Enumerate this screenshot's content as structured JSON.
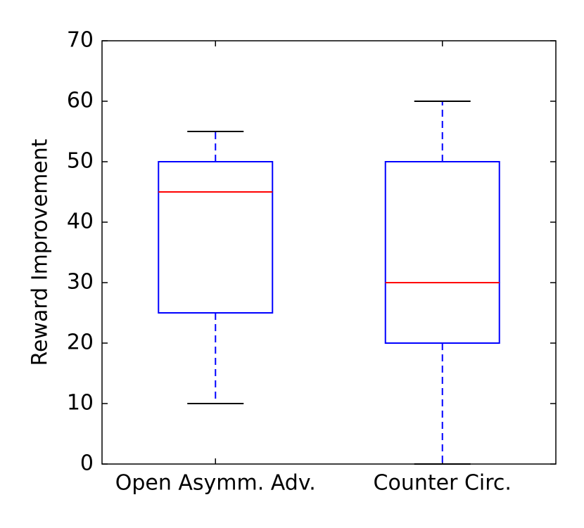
{
  "chart_data": {
    "type": "box",
    "ylabel": "Reward Improvement",
    "categories": [
      "Open Asymm. Adv.",
      "Counter Circ."
    ],
    "boxes": [
      {
        "whislo": 10,
        "q1": 25,
        "med": 45,
        "q3": 50,
        "whishi": 55
      },
      {
        "whislo": 0,
        "q1": 20,
        "med": 30,
        "q3": 50,
        "whishi": 60
      }
    ],
    "box_color": "#0000ff",
    "median_color": "#ff0000",
    "cap_color": "#000000",
    "ylim": [
      0,
      70
    ],
    "yticks": [
      0,
      10,
      20,
      30,
      40,
      50,
      60,
      70
    ]
  }
}
